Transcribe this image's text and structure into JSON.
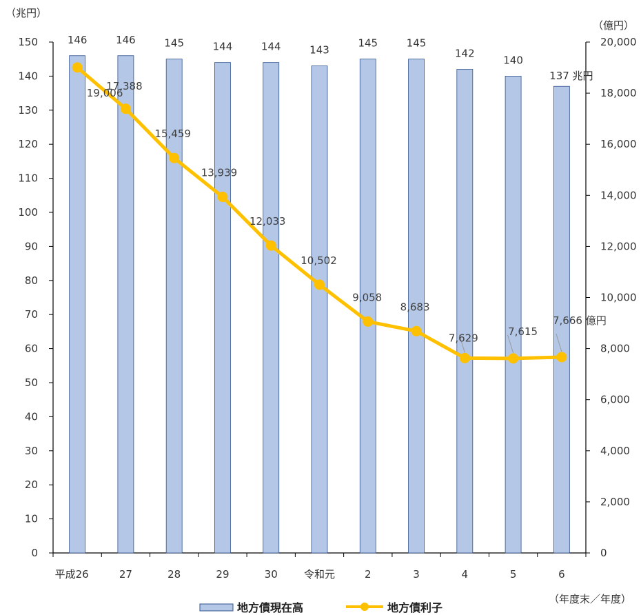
{
  "chart_data": {
    "type": "bar+line",
    "categories": [
      "平成26",
      "27",
      "28",
      "29",
      "30",
      "令和元",
      "2",
      "3",
      "4",
      "5",
      "6"
    ],
    "series": [
      {
        "name": "地方債現在高",
        "type": "bar",
        "axis": "left",
        "values": [
          146,
          146,
          145,
          144,
          144,
          143,
          145,
          145,
          142,
          140,
          137
        ],
        "labels": [
          "146",
          "146",
          "145",
          "144",
          "144",
          "143",
          "145",
          "145",
          "142",
          "140",
          "137 兆円"
        ],
        "color": "#B4C7E7",
        "stroke": "#2F528F"
      },
      {
        "name": "地方債利子",
        "type": "line",
        "axis": "right",
        "values": [
          19006,
          17388,
          15459,
          13939,
          12033,
          10502,
          9058,
          8683,
          7629,
          7615,
          7666
        ],
        "labels": [
          "19,006",
          "17,388",
          "15,459",
          "13,939",
          "12,033",
          "10,502",
          "9,058",
          "8,683",
          "7,629",
          "7,615",
          "7,666 億円"
        ],
        "color": "#FFC000"
      }
    ],
    "y_left": {
      "unit": "（兆円）",
      "min": 0,
      "max": 150,
      "step": 10
    },
    "y_right": {
      "unit": "（億円）",
      "min": 0,
      "max": 20000,
      "step": 2000
    },
    "x_unit": "（年度末／年度）",
    "grid": false,
    "legend_position": "bottom"
  }
}
